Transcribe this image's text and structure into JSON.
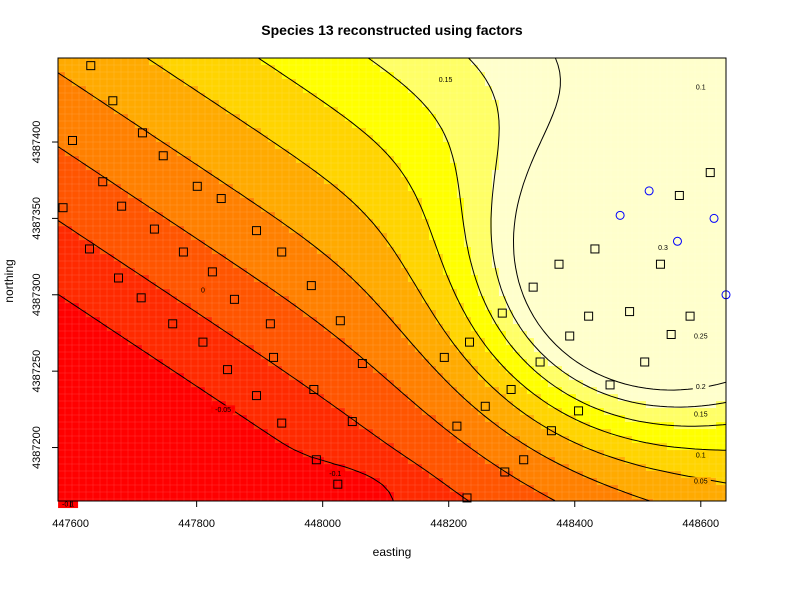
{
  "chart_data": {
    "type": "heatmap",
    "title": "Species 13 reconstructed using factors",
    "xlabel": "easting",
    "ylabel": "northing",
    "xlim": [
      447580,
      448640
    ],
    "ylim": [
      387165,
      387455
    ],
    "x_ticks": [
      447600,
      447800,
      448000,
      448200,
      448400,
      448600
    ],
    "y_ticks": [
      387200,
      387250,
      387300,
      387350,
      387400
    ],
    "y_tick_labels": [
      "4387200",
      "4387250",
      "4387300",
      "4387350",
      "4387400"
    ],
    "colors": {
      "levels": [
        "#ff0000",
        "#ff2a00",
        "#ff5500",
        "#ff8000",
        "#ffaa00",
        "#ffd400",
        "#ffff00",
        "#ffff66",
        "#ffffcc"
      ],
      "grid_line": "#ffffff",
      "contour": "#000000",
      "square": "#000000",
      "circle": "#0000ff"
    },
    "contour_labels": [
      {
        "text": "0.15",
        "x": 448195,
        "y": 387441
      },
      {
        "text": "0.1",
        "x": 448600,
        "y": 387436
      },
      {
        "text": "0.3",
        "x": 448540,
        "y": 387331
      },
      {
        "text": "0.25",
        "x": 448600,
        "y": 387273
      },
      {
        "text": "0.2",
        "x": 448600,
        "y": 387240
      },
      {
        "text": "0.15",
        "x": 448600,
        "y": 387222
      },
      {
        "text": "0.1",
        "x": 448600,
        "y": 387195
      },
      {
        "text": "0.05",
        "x": 448600,
        "y": 387178
      },
      {
        "text": "0",
        "x": 447810,
        "y": 387303
      },
      {
        "text": "-0.05",
        "x": 447842,
        "y": 387225
      },
      {
        "text": "-0.1",
        "x": 447596,
        "y": 387163
      },
      {
        "text": "-0.1",
        "x": 448020,
        "y": 387183
      }
    ],
    "squares": [
      [
        447632,
        387450
      ],
      [
        447667,
        387427
      ],
      [
        447714,
        387406
      ],
      [
        447603,
        387401
      ],
      [
        447747,
        387391
      ],
      [
        447651,
        387374
      ],
      [
        447801,
        387371
      ],
      [
        447839,
        387363
      ],
      [
        447588,
        387357
      ],
      [
        447681,
        387358
      ],
      [
        447733,
        387343
      ],
      [
        447895,
        387342
      ],
      [
        447630,
        387330
      ],
      [
        447779,
        387328
      ],
      [
        447935,
        387328
      ],
      [
        447825,
        387315
      ],
      [
        447676,
        387311
      ],
      [
        447982,
        387306
      ],
      [
        447712,
        387298
      ],
      [
        447860,
        387297
      ],
      [
        447762,
        387281
      ],
      [
        447917,
        387281
      ],
      [
        448028,
        387283
      ],
      [
        447810,
        387269
      ],
      [
        448233,
        387269
      ],
      [
        447922,
        387259
      ],
      [
        447849,
        387251
      ],
      [
        448063,
        387255
      ],
      [
        448193,
        387259
      ],
      [
        448345,
        387256
      ],
      [
        447986,
        387238
      ],
      [
        447895,
        387234
      ],
      [
        448299,
        387238
      ],
      [
        448047,
        387217
      ],
      [
        447935,
        387216
      ],
      [
        448258,
        387227
      ],
      [
        448213,
        387214
      ],
      [
        448363,
        387211
      ],
      [
        447990,
        387192
      ],
      [
        448319,
        387192
      ],
      [
        448024,
        387176
      ],
      [
        448289,
        387184
      ],
      [
        448229,
        387167
      ],
      [
        448334,
        387305
      ],
      [
        448285,
        387288
      ],
      [
        448392,
        387273
      ],
      [
        448375,
        387320
      ],
      [
        448422,
        387286
      ],
      [
        448487,
        387289
      ],
      [
        448456,
        387241
      ],
      [
        448432,
        387330
      ],
      [
        448511,
        387256
      ],
      [
        448553,
        387274
      ],
      [
        448536,
        387320
      ],
      [
        448566,
        387365
      ],
      [
        448583,
        387286
      ],
      [
        448615,
        387380
      ],
      [
        448406,
        387224
      ]
    ],
    "circles": [
      [
        448472,
        387352
      ],
      [
        448518,
        387368
      ],
      [
        448563,
        387335
      ],
      [
        448621,
        387350
      ],
      [
        448640,
        387300
      ]
    ]
  }
}
